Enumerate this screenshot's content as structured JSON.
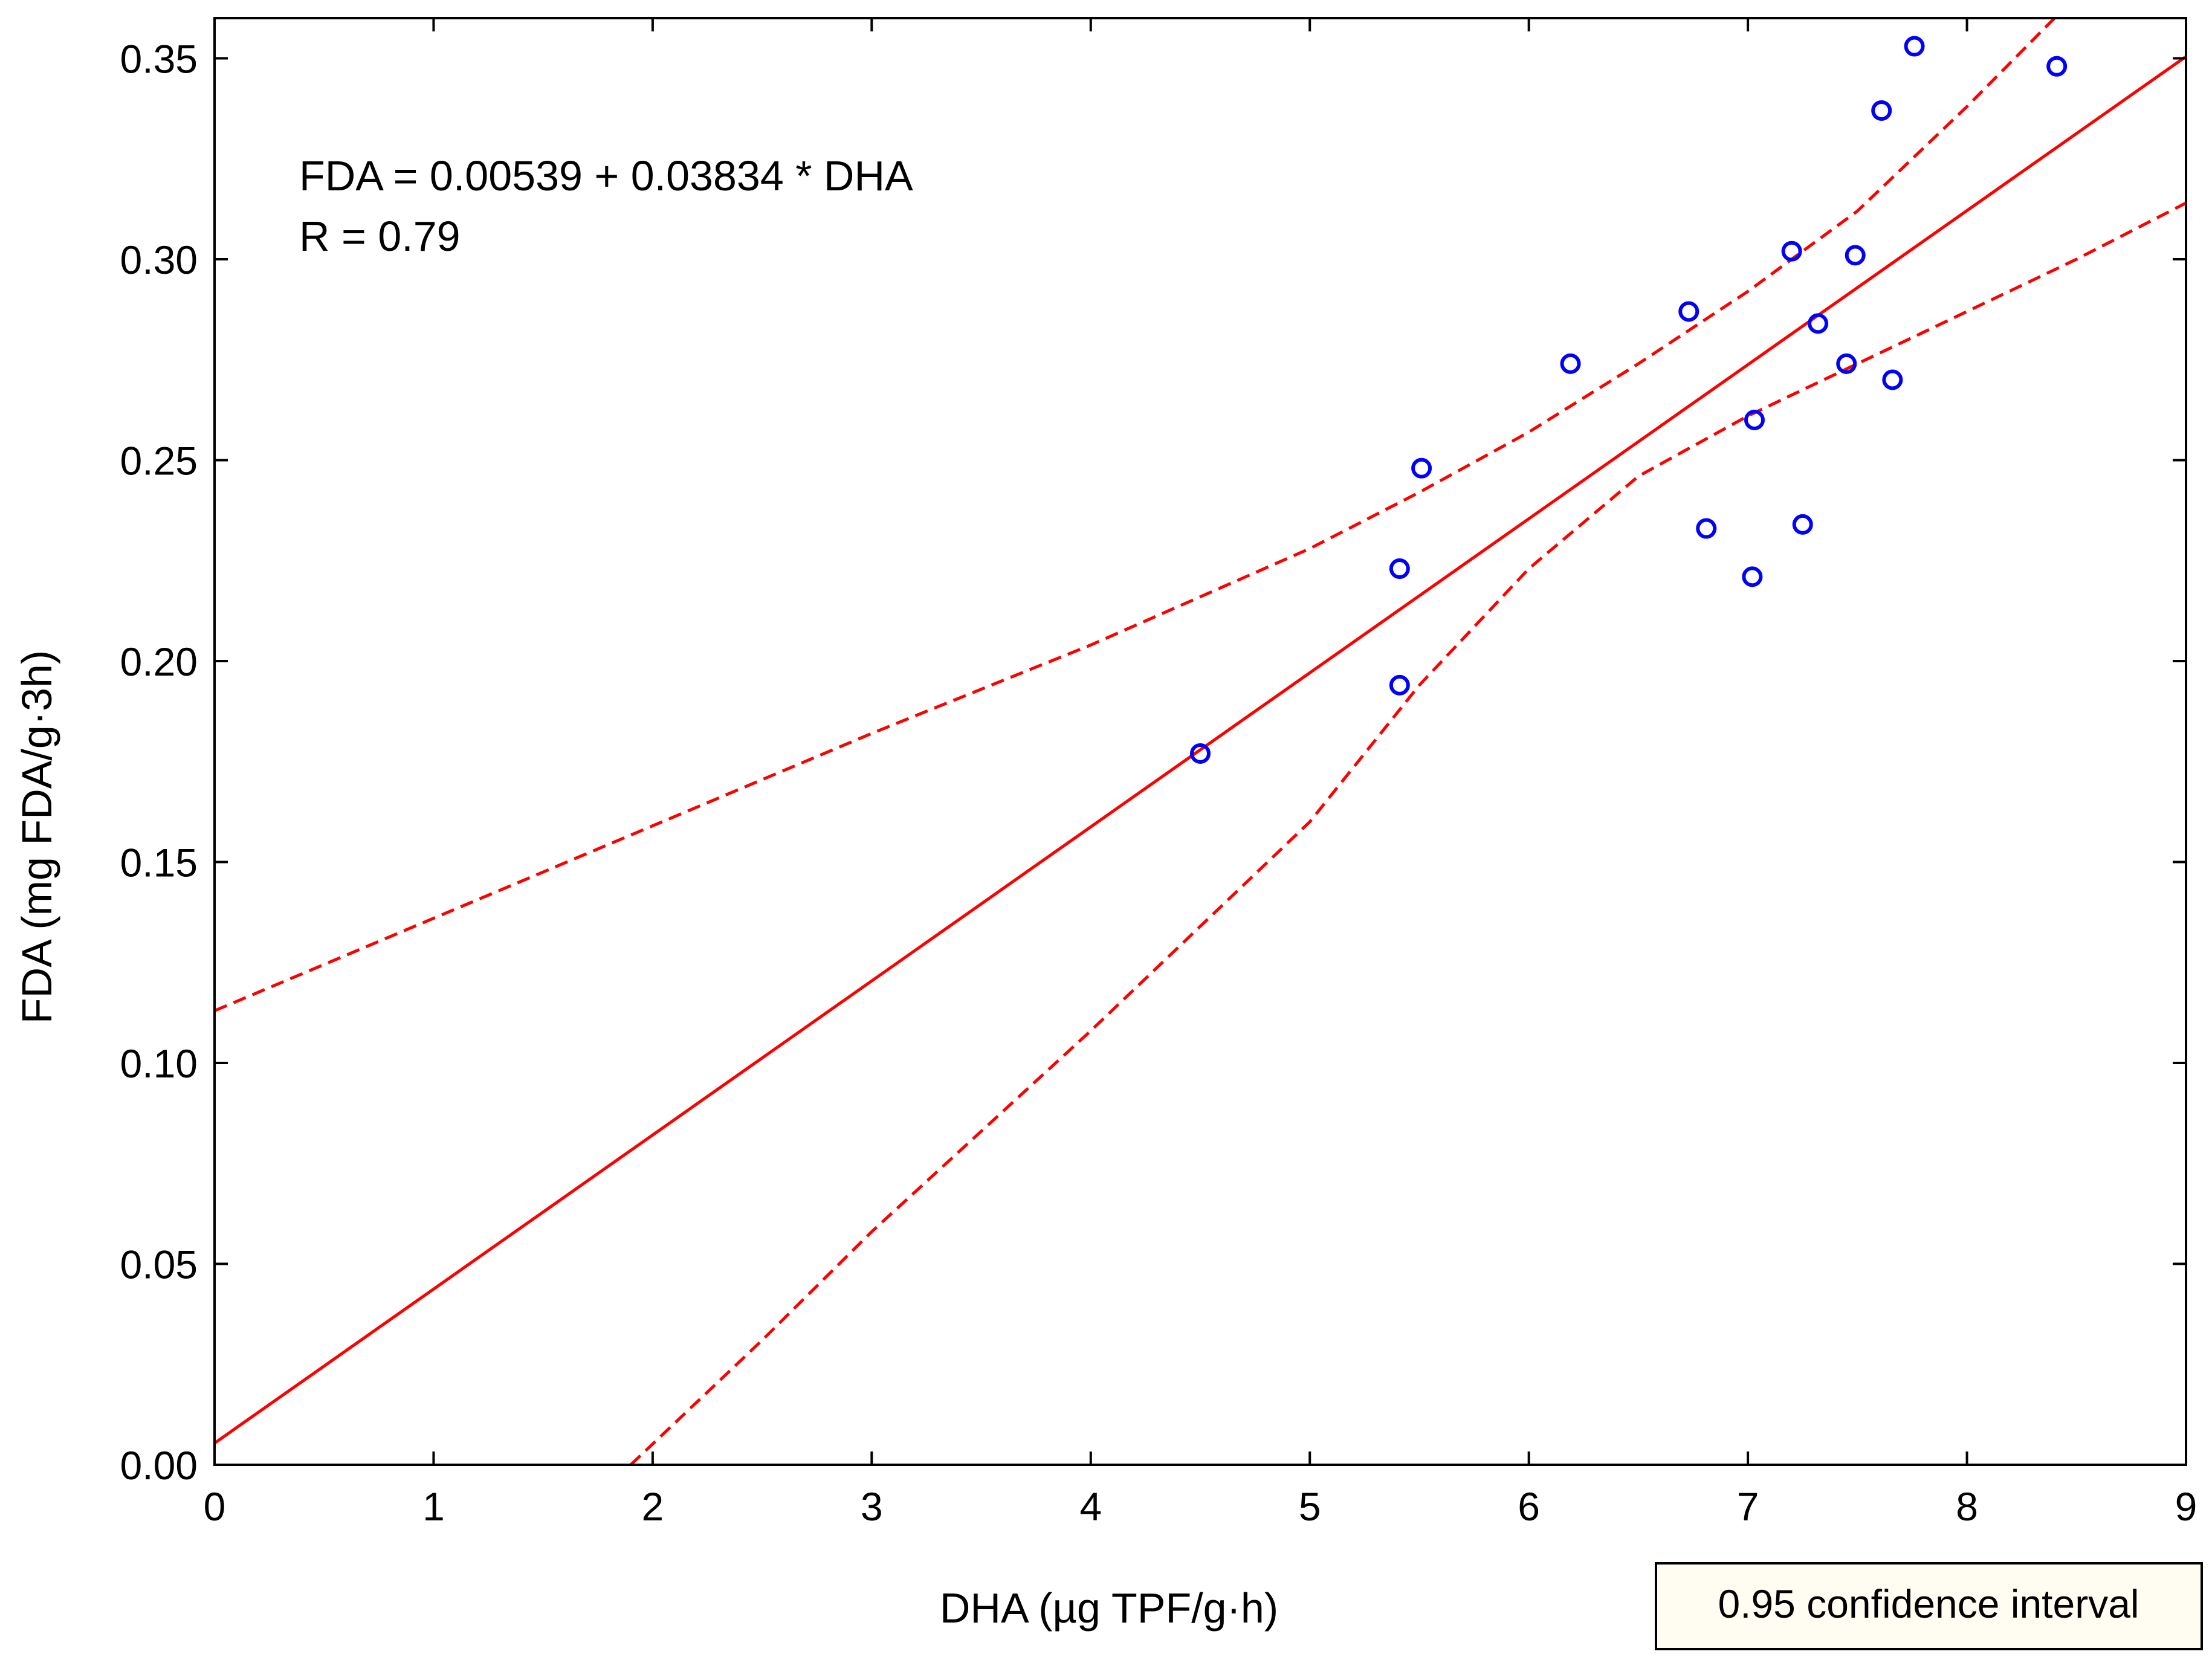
{
  "chart_data": {
    "type": "scatter",
    "title": "",
    "xlabel": "DHA (µg TPF/g·h)",
    "ylabel": "FDA (mg FDA/g·3h)",
    "xlim": [
      0,
      9
    ],
    "ylim": [
      0,
      0.36
    ],
    "x_ticks": [
      0,
      1,
      2,
      3,
      4,
      5,
      6,
      7,
      8,
      9
    ],
    "x_tick_labels": [
      "0",
      "1",
      "2",
      "3",
      "4",
      "5",
      "6",
      "7",
      "8",
      "9"
    ],
    "y_ticks": [
      0,
      0.05,
      0.1,
      0.15,
      0.2,
      0.25,
      0.3,
      0.35
    ],
    "y_tick_labels": [
      "0.00",
      "0.05",
      "0.10",
      "0.15",
      "0.20",
      "0.25",
      "0.30",
      "0.35"
    ],
    "grid": false,
    "series": [
      {
        "name": "observations",
        "kind": "scatter",
        "color": "#0000ff",
        "x": [
          4.5,
          5.41,
          5.41,
          5.51,
          6.19,
          6.73,
          6.81,
          7.02,
          7.03,
          7.2,
          7.25,
          7.32,
          7.45,
          7.49,
          7.61,
          7.66,
          7.76,
          8.41
        ],
        "y": [
          0.177,
          0.194,
          0.223,
          0.248,
          0.274,
          0.287,
          0.233,
          0.221,
          0.26,
          0.302,
          0.234,
          0.284,
          0.274,
          0.301,
          0.337,
          0.27,
          0.353,
          0.348
        ]
      },
      {
        "name": "regression line",
        "kind": "line",
        "color": "#ff0000",
        "intercept": 0.00539,
        "slope": 0.03834
      },
      {
        "name": "upper 0.95 confidence band",
        "kind": "dashed-line",
        "color": "#ff0000",
        "x": [
          0,
          1,
          2,
          3,
          4,
          5,
          5.5,
          6,
          6.5,
          7,
          7.5,
          8,
          8.4
        ],
        "y": [
          0.113,
          0.136,
          0.159,
          0.182,
          0.204,
          0.228,
          0.242,
          0.257,
          0.274,
          0.292,
          0.312,
          0.338,
          0.36
        ]
      },
      {
        "name": "lower 0.95 confidence band",
        "kind": "dashed-line",
        "color": "#ff0000",
        "x": [
          1.9,
          2.5,
          3,
          3.5,
          4,
          4.5,
          5,
          5.5,
          6,
          6.5,
          7,
          7.5,
          8,
          8.5,
          9
        ],
        "y": [
          0,
          0.031,
          0.058,
          0.083,
          0.108,
          0.134,
          0.16,
          0.194,
          0.223,
          0.246,
          0.261,
          0.274,
          0.287,
          0.3,
          0.314
        ]
      }
    ],
    "annotations": {
      "equation": "FDA = 0.00539 + 0.03834 * DHA",
      "r_value": "R = 0.79"
    },
    "legend": {
      "label": "0.95 confidence interval",
      "placement": "bottom-right"
    }
  }
}
